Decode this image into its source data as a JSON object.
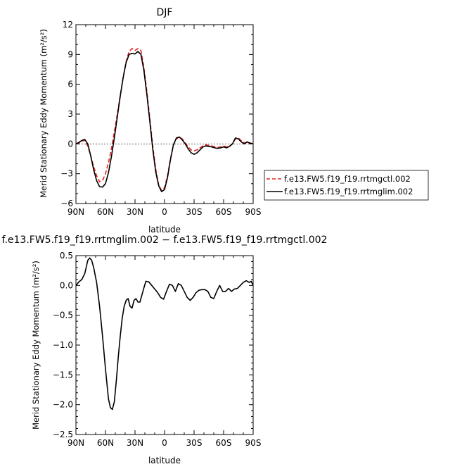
{
  "chart_data": [
    {
      "type": "line",
      "title": "DJF",
      "xlabel": "latitude",
      "ylabel": "Merid Stationary Eddy Momentum  (m²/s²)",
      "x_ticks": [
        "90N",
        "60N",
        "30N",
        "0",
        "30S",
        "60S",
        "90S"
      ],
      "x_tick_values": [
        90,
        60,
        30,
        0,
        -30,
        -60,
        -90
      ],
      "xlim": [
        90,
        -90
      ],
      "y_ticks": [
        "−6",
        "−3",
        "0",
        "3",
        "6",
        "9",
        "12"
      ],
      "y_tick_values": [
        -6,
        -3,
        0,
        3,
        6,
        9,
        12
      ],
      "ylim": [
        -6,
        12
      ],
      "legend_position": "right",
      "series": [
        {
          "name": "f.e13.FW5.f19_f19.rrtmgctl.002",
          "color": "#e8231f",
          "dash": "dashed",
          "x": [
            90,
            87,
            84,
            81,
            78,
            75,
            72,
            69,
            66,
            63,
            60,
            57,
            54,
            51,
            48,
            45,
            42,
            39,
            36,
            33,
            30,
            27,
            24,
            21,
            18,
            15,
            12,
            9,
            6,
            3,
            0,
            -3,
            -6,
            -9,
            -12,
            -15,
            -18,
            -21,
            -24,
            -27,
            -30,
            -33,
            -36,
            -39,
            -42,
            -45,
            -48,
            -51,
            -54,
            -57,
            -60,
            -63,
            -66,
            -69,
            -72,
            -75,
            -78,
            -81,
            -84,
            -87,
            -90
          ],
          "values": [
            0.0,
            0.1,
            0.3,
            0.35,
            -0.2,
            -1.2,
            -2.3,
            -3.2,
            -3.8,
            -3.7,
            -3.0,
            -1.9,
            -0.5,
            1.2,
            3.0,
            4.9,
            6.7,
            8.3,
            9.3,
            9.6,
            9.4,
            9.6,
            9.4,
            7.7,
            5.3,
            2.6,
            -0.2,
            -2.5,
            -4.1,
            -4.7,
            -4.4,
            -3.2,
            -1.5,
            -0.1,
            0.5,
            0.7,
            0.5,
            0.1,
            -0.3,
            -0.6,
            -0.7,
            -0.6,
            -0.4,
            -0.2,
            -0.1,
            -0.15,
            -0.2,
            -0.3,
            -0.35,
            -0.3,
            -0.2,
            -0.3,
            -0.2,
            0.0,
            0.5,
            0.6,
            0.3,
            0.1,
            0.2,
            0.1,
            0.0
          ]
        },
        {
          "name": "f.e13.FW5.f19_f19.rrtmglim.002",
          "color": "#000000",
          "dash": "solid",
          "x": [
            90,
            87,
            84,
            81,
            78,
            75,
            72,
            69,
            66,
            63,
            60,
            57,
            54,
            51,
            48,
            45,
            42,
            39,
            36,
            33,
            30,
            27,
            24,
            21,
            18,
            15,
            12,
            9,
            6,
            3,
            0,
            -3,
            -6,
            -9,
            -12,
            -15,
            -18,
            -21,
            -24,
            -27,
            -30,
            -33,
            -36,
            -39,
            -42,
            -45,
            -48,
            -51,
            -54,
            -57,
            -60,
            -63,
            -66,
            -69,
            -72,
            -75,
            -78,
            -81,
            -84,
            -87,
            -90
          ],
          "values": [
            0.0,
            0.15,
            0.35,
            0.45,
            0.0,
            -1.2,
            -2.6,
            -3.7,
            -4.3,
            -4.35,
            -4.0,
            -2.9,
            -1.3,
            0.6,
            2.7,
            4.8,
            6.7,
            8.2,
            9.0,
            9.1,
            9.05,
            9.3,
            9.0,
            7.4,
            5.0,
            2.3,
            -0.5,
            -2.8,
            -4.2,
            -4.8,
            -4.6,
            -3.4,
            -1.6,
            -0.1,
            0.6,
            0.7,
            0.4,
            0.0,
            -0.5,
            -0.9,
            -1.05,
            -0.9,
            -0.6,
            -0.3,
            -0.2,
            -0.25,
            -0.3,
            -0.4,
            -0.45,
            -0.4,
            -0.3,
            -0.4,
            -0.25,
            0.0,
            0.6,
            0.5,
            0.2,
            0.0,
            0.2,
            0.05,
            0.0
          ]
        }
      ]
    },
    {
      "type": "line",
      "title": "f.e13.FW5.f19_f19.rrtmglim.002 − f.e13.FW5.f19_f19.rrtmgctl.002",
      "xlabel": "latitude",
      "ylabel": "Merid Stationary Eddy Momentum  (m²/s²)",
      "x_ticks": [
        "90N",
        "60N",
        "30N",
        "0",
        "30S",
        "60S",
        "90S"
      ],
      "x_tick_values": [
        90,
        60,
        30,
        0,
        -30,
        -60,
        -90
      ],
      "xlim": [
        90,
        -90
      ],
      "y_ticks": [
        "−2.5",
        "−2.0",
        "−1.5",
        "−1.0",
        "−0.5",
        "0.0",
        "0.5"
      ],
      "y_tick_values": [
        -2.5,
        -2.0,
        -1.5,
        -1.0,
        -0.5,
        0.0,
        0.5
      ],
      "ylim": [
        -2.5,
        0.5
      ],
      "series": [
        {
          "color": "#000000",
          "dash": "solid",
          "x": [
            90,
            87,
            84,
            81,
            78,
            76,
            74,
            72,
            69,
            66,
            63,
            60,
            57,
            55,
            53,
            51,
            49,
            47,
            45,
            43,
            41,
            39,
            37,
            35,
            33,
            31,
            29,
            27,
            25,
            22,
            19,
            16,
            13,
            10,
            7,
            4,
            1,
            -2,
            -5,
            -8,
            -11,
            -14,
            -17,
            -20,
            -23,
            -26,
            -29,
            -32,
            -35,
            -38,
            -41,
            -44,
            -47,
            -50,
            -53,
            -56,
            -59,
            -62,
            -65,
            -68,
            -71,
            -74,
            -77,
            -80,
            -83,
            -86,
            -88,
            -90
          ],
          "values": [
            0.0,
            0.06,
            0.1,
            0.2,
            0.42,
            0.46,
            0.42,
            0.3,
            0.05,
            -0.35,
            -0.85,
            -1.4,
            -1.9,
            -2.05,
            -2.08,
            -1.95,
            -1.6,
            -1.2,
            -0.85,
            -0.55,
            -0.35,
            -0.25,
            -0.22,
            -0.35,
            -0.38,
            -0.25,
            -0.22,
            -0.28,
            -0.28,
            -0.1,
            0.07,
            0.06,
            0.0,
            -0.06,
            -0.12,
            -0.2,
            -0.23,
            -0.1,
            0.02,
            0.0,
            -0.1,
            0.03,
            0.0,
            -0.1,
            -0.2,
            -0.25,
            -0.2,
            -0.12,
            -0.08,
            -0.07,
            -0.07,
            -0.1,
            -0.2,
            -0.22,
            -0.1,
            0.0,
            -0.1,
            -0.1,
            -0.05,
            -0.1,
            -0.06,
            -0.05,
            0.0,
            0.05,
            0.08,
            0.05,
            0.07,
            0.0
          ]
        }
      ]
    }
  ]
}
